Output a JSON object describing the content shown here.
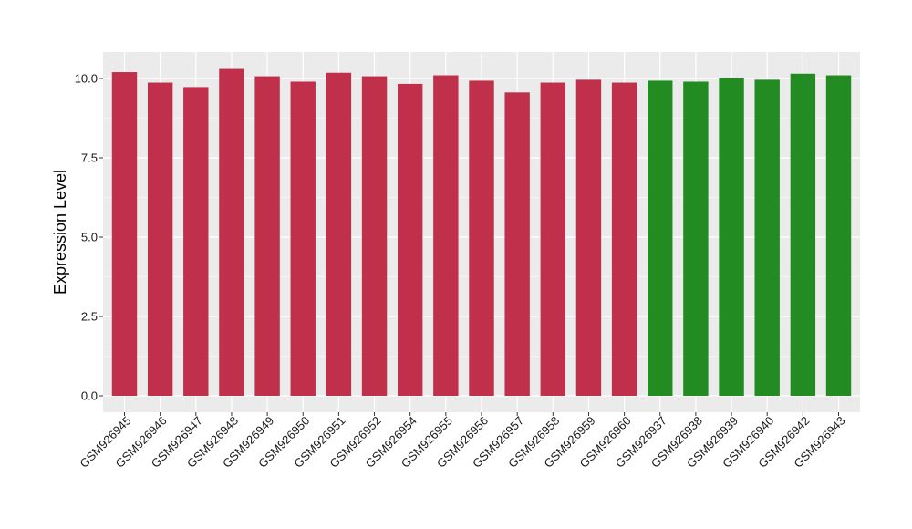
{
  "chart_data": {
    "type": "bar",
    "title": "",
    "xlabel": "",
    "ylabel": "Expression Level",
    "ylim": [
      0,
      10.6
    ],
    "yticks": [
      0.0,
      2.5,
      5.0,
      7.5,
      10.0
    ],
    "ytick_labels": [
      "0.0",
      "2.5",
      "5.0",
      "7.5",
      "10.0"
    ],
    "grid": true,
    "legend": "none",
    "panel_background": "#ebebeb",
    "grid_color": "#ffffff",
    "categories": [
      "GSM926945",
      "GSM926946",
      "GSM926947",
      "GSM926948",
      "GSM926949",
      "GSM926950",
      "GSM926951",
      "GSM926952",
      "GSM926954",
      "GSM926955",
      "GSM926956",
      "GSM926957",
      "GSM926958",
      "GSM926959",
      "GSM926960",
      "GSM926937",
      "GSM926938",
      "GSM926939",
      "GSM926940",
      "GSM926942",
      "GSM926943"
    ],
    "values": [
      10.2,
      9.87,
      9.73,
      10.3,
      10.07,
      9.9,
      10.18,
      10.07,
      9.83,
      10.1,
      9.93,
      9.56,
      9.87,
      9.96,
      9.87,
      9.93,
      9.9,
      10.01,
      9.96,
      10.15,
      10.1
    ],
    "bar_colors": [
      "#c0304a",
      "#c0304a",
      "#c0304a",
      "#c0304a",
      "#c0304a",
      "#c0304a",
      "#c0304a",
      "#c0304a",
      "#c0304a",
      "#c0304a",
      "#c0304a",
      "#c0304a",
      "#c0304a",
      "#c0304a",
      "#c0304a",
      "#228b22",
      "#228b22",
      "#228b22",
      "#228b22",
      "#228b22",
      "#228b22"
    ]
  }
}
